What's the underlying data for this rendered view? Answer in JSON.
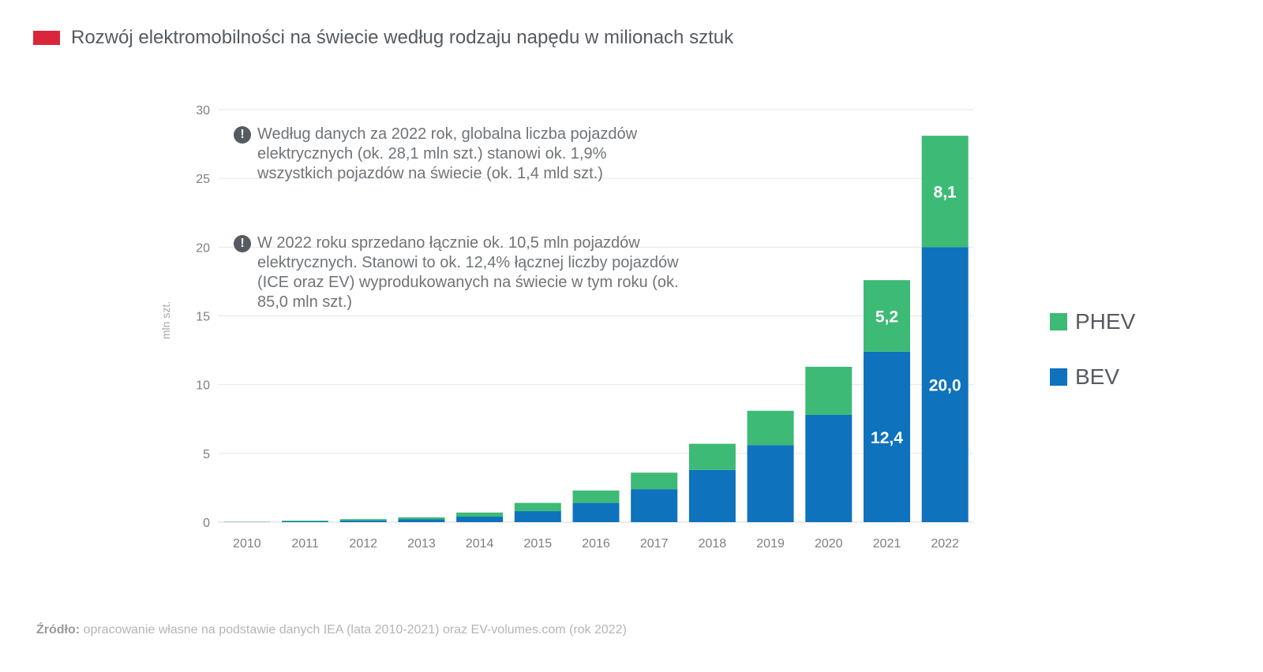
{
  "header": {
    "title": "Rozwój elektromobilności na świecie według rodzaju napędu w milionach sztuk",
    "marker_color": "#d9263a"
  },
  "notes": [
    {
      "icon": "exclamation-icon",
      "text": "Według danych za 2022 rok, globalna liczba pojazdów elektrycznych (ok. 28,1 mln szt.) stanowi ok. 1,9% wszystkich pojazdów na świecie (ok. 1,4 mld szt.)"
    },
    {
      "icon": "exclamation-icon",
      "text": "W 2022 roku sprzedano łącznie ok. 10,5 mln pojazdów elektrycznych. Stanowi to ok. 12,4% łącznej liczby pojazdów (ICE oraz EV) wyprodukowanych na świecie w tym roku (ok. 85,0 mln szt.)"
    }
  ],
  "legend": [
    {
      "label": "PHEV",
      "color": "#3dba76"
    },
    {
      "label": "BEV",
      "color": "#0e72bd"
    }
  ],
  "source": {
    "prefix": "Źródło:",
    "text": " opracowanie własne na podstawie danych IEA (lata 2010-2021) oraz EV-volumes.com (rok 2022)"
  },
  "chart_data": {
    "type": "bar",
    "stacked": true,
    "title": "Rozwój elektromobilności na świecie według rodzaju napędu w milionach sztuk",
    "xlabel": "",
    "ylabel": "mln szt.",
    "ylim": [
      0,
      30
    ],
    "yticks": [
      0,
      5,
      10,
      15,
      20,
      25,
      30
    ],
    "grid": true,
    "legend_position": "right",
    "categories": [
      "2010",
      "2011",
      "2012",
      "2013",
      "2014",
      "2015",
      "2016",
      "2017",
      "2018",
      "2019",
      "2020",
      "2021",
      "2022"
    ],
    "series": [
      {
        "name": "BEV",
        "color": "#0e72bd",
        "values": [
          0.02,
          0.06,
          0.12,
          0.2,
          0.4,
          0.8,
          1.4,
          2.4,
          3.8,
          5.6,
          7.8,
          12.4,
          20.0
        ],
        "labels": {
          "11": "12,4",
          "12": "20,0"
        }
      },
      {
        "name": "PHEV",
        "color": "#3dba76",
        "values": [
          0.0,
          0.05,
          0.1,
          0.15,
          0.3,
          0.6,
          0.9,
          1.2,
          1.9,
          2.5,
          3.5,
          5.2,
          8.1
        ],
        "labels": {
          "11": "5,2",
          "12": "8,1"
        }
      }
    ]
  }
}
